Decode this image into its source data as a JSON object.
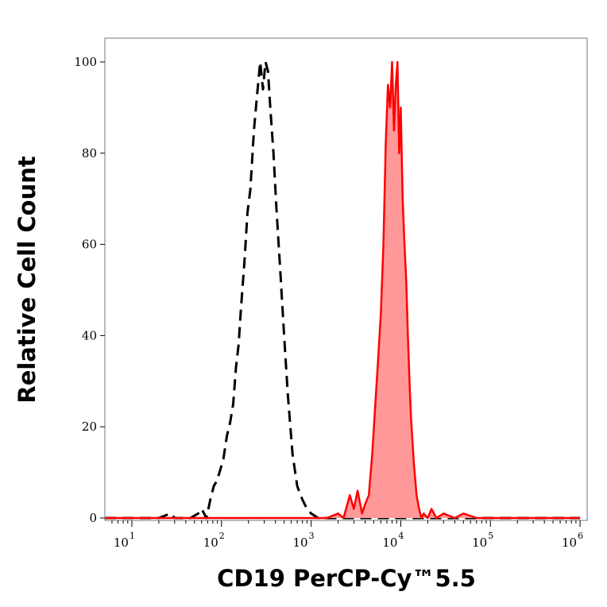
{
  "chart_data": {
    "type": "area",
    "title": "",
    "xlabel": "CD19 PerCP-Cy™5.5",
    "ylabel": "Relative Cell Count",
    "x_scale": "log",
    "xlim": [
      5,
      1200000
    ],
    "ylim": [
      0,
      100
    ],
    "x_ticks": [
      {
        "value": 10,
        "base": "10",
        "exp": "1"
      },
      {
        "value": 100,
        "base": "10",
        "exp": "2"
      },
      {
        "value": 1000,
        "base": "10",
        "exp": "3"
      },
      {
        "value": 10000,
        "base": "10",
        "exp": "4"
      },
      {
        "value": 100000,
        "base": "10",
        "exp": "5"
      },
      {
        "value": 1000000,
        "base": "10",
        "exp": "6"
      }
    ],
    "y_ticks": [
      "0",
      "20",
      "40",
      "60",
      "80",
      "100"
    ],
    "grid": false,
    "legend": "none",
    "series": [
      {
        "style": "dashed",
        "color": "#000000",
        "fill": "none",
        "x": [
          5,
          20,
          27,
          30,
          45,
          55,
          60,
          68,
          75,
          82,
          88,
          95,
          105,
          115,
          125,
          135,
          145,
          155,
          165,
          180,
          195,
          210,
          230,
          250,
          270,
          290,
          310,
          330,
          350,
          380,
          410,
          450,
          500,
          550,
          620,
          700,
          800,
          900,
          1000,
          1200,
          1500,
          2000,
          5000,
          1000000
        ],
        "y": [
          0,
          0,
          1,
          0,
          0,
          1,
          2,
          0,
          4,
          7,
          8,
          10,
          13,
          18,
          21,
          25,
          33,
          38,
          46,
          56,
          67,
          72,
          85,
          93,
          100,
          94,
          100,
          98,
          90,
          80,
          68,
          55,
          40,
          27,
          14,
          7,
          4,
          2,
          1,
          0,
          0,
          0,
          0,
          0
        ]
      },
      {
        "style": "solid",
        "color": "#ff0000",
        "fill": "#ff9999",
        "x": [
          5,
          1500,
          2000,
          2300,
          2700,
          3000,
          3300,
          3700,
          4000,
          4400,
          4800,
          5200,
          5600,
          6000,
          6400,
          6800,
          7200,
          7600,
          8000,
          8400,
          8800,
          9200,
          9600,
          10000,
          10500,
          11000,
          11500,
          12000,
          12500,
          13000,
          14000,
          15000,
          16000,
          17000,
          18000,
          20000,
          22000,
          25000,
          30000,
          40000,
          50000,
          70000,
          100000,
          1000000
        ],
        "y": [
          0,
          0,
          1,
          0,
          5,
          2,
          6,
          1,
          3,
          5,
          14,
          25,
          35,
          45,
          60,
          82,
          95,
          90,
          100,
          85,
          95,
          100,
          80,
          90,
          70,
          60,
          52,
          40,
          30,
          22,
          12,
          5,
          2,
          0,
          1,
          0,
          2,
          0,
          1,
          0,
          1,
          0,
          0,
          0
        ]
      }
    ]
  }
}
